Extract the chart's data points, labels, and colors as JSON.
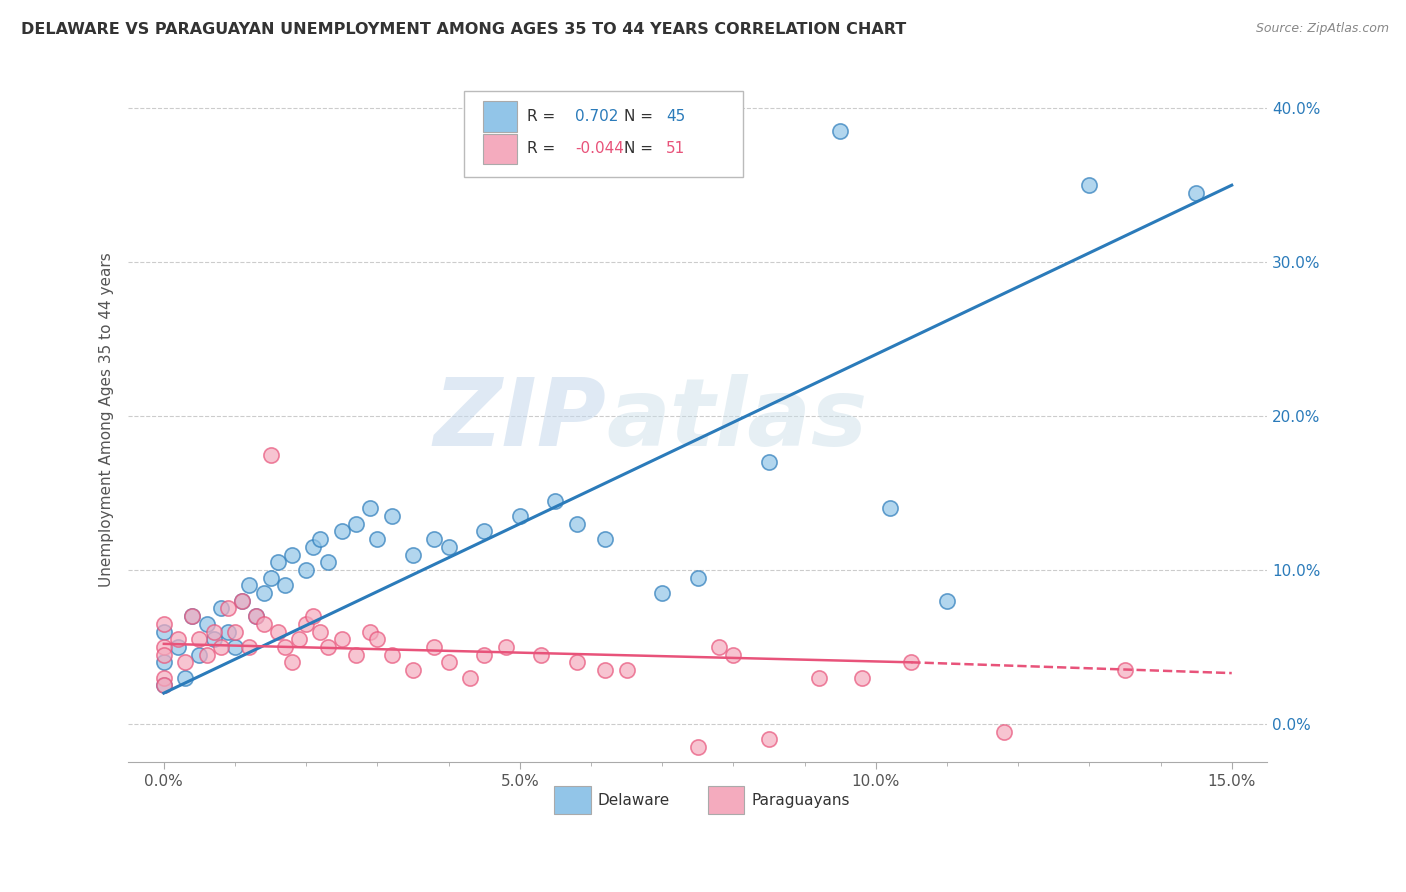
{
  "title": "DELAWARE VS PARAGUAYAN UNEMPLOYMENT AMONG AGES 35 TO 44 YEARS CORRELATION CHART",
  "source": "Source: ZipAtlas.com",
  "ylabel": "Unemployment Among Ages 35 to 44 years",
  "xlim": [
    -0.5,
    15.5
  ],
  "ylim": [
    -2.5,
    42.0
  ],
  "xticks": [
    0.0,
    5.0,
    10.0,
    15.0
  ],
  "xtick_labels": [
    "0.0%",
    "5.0%",
    "10.0%",
    "15.0%"
  ],
  "yticks": [
    0.0,
    10.0,
    20.0,
    30.0,
    40.0
  ],
  "ytick_labels": [
    "0.0%",
    "10.0%",
    "20.0%",
    "30.0%",
    "40.0%"
  ],
  "delaware_R": 0.702,
  "delaware_N": 45,
  "paraguayan_R": -0.044,
  "paraguayan_N": 51,
  "delaware_color": "#92c5e8",
  "paraguayan_color": "#f4abbe",
  "delaware_line_color": "#2b7bba",
  "paraguayan_line_color": "#e8537a",
  "watermark": "ZIPatlas",
  "background_color": "#ffffff",
  "delaware_x": [
    0.0,
    0.0,
    0.0,
    0.2,
    0.3,
    0.4,
    0.5,
    0.6,
    0.7,
    0.8,
    0.9,
    1.0,
    1.1,
    1.2,
    1.3,
    1.4,
    1.5,
    1.6,
    1.7,
    1.8,
    2.0,
    2.1,
    2.2,
    2.3,
    2.5,
    2.7,
    2.9,
    3.0,
    3.2,
    3.5,
    3.8,
    4.0,
    4.5,
    5.0,
    5.5,
    5.8,
    6.2,
    7.0,
    7.5,
    8.5,
    9.5,
    10.2,
    11.0,
    13.0,
    14.5
  ],
  "delaware_y": [
    2.5,
    4.0,
    6.0,
    5.0,
    3.0,
    7.0,
    4.5,
    6.5,
    5.5,
    7.5,
    6.0,
    5.0,
    8.0,
    9.0,
    7.0,
    8.5,
    9.5,
    10.5,
    9.0,
    11.0,
    10.0,
    11.5,
    12.0,
    10.5,
    12.5,
    13.0,
    14.0,
    12.0,
    13.5,
    11.0,
    12.0,
    11.5,
    12.5,
    13.5,
    14.5,
    13.0,
    12.0,
    8.5,
    9.5,
    17.0,
    38.5,
    14.0,
    8.0,
    35.0,
    34.5
  ],
  "paraguayan_x": [
    0.0,
    0.0,
    0.0,
    0.0,
    0.0,
    0.2,
    0.3,
    0.4,
    0.5,
    0.6,
    0.7,
    0.8,
    0.9,
    1.0,
    1.1,
    1.2,
    1.3,
    1.4,
    1.5,
    1.6,
    1.7,
    1.8,
    1.9,
    2.0,
    2.1,
    2.2,
    2.3,
    2.5,
    2.7,
    2.9,
    3.0,
    3.2,
    3.5,
    3.8,
    4.0,
    4.3,
    4.8,
    5.3,
    6.2,
    7.5,
    8.0,
    9.2,
    10.5,
    11.8,
    13.5,
    4.5,
    5.8,
    6.5,
    7.8,
    8.5,
    9.8
  ],
  "paraguayan_y": [
    3.0,
    5.0,
    4.5,
    6.5,
    2.5,
    5.5,
    4.0,
    7.0,
    5.5,
    4.5,
    6.0,
    5.0,
    7.5,
    6.0,
    8.0,
    5.0,
    7.0,
    6.5,
    17.5,
    6.0,
    5.0,
    4.0,
    5.5,
    6.5,
    7.0,
    6.0,
    5.0,
    5.5,
    4.5,
    6.0,
    5.5,
    4.5,
    3.5,
    5.0,
    4.0,
    3.0,
    5.0,
    4.5,
    3.5,
    -1.5,
    4.5,
    3.0,
    4.0,
    -0.5,
    3.5,
    4.5,
    4.0,
    3.5,
    5.0,
    -1.0,
    3.0
  ]
}
